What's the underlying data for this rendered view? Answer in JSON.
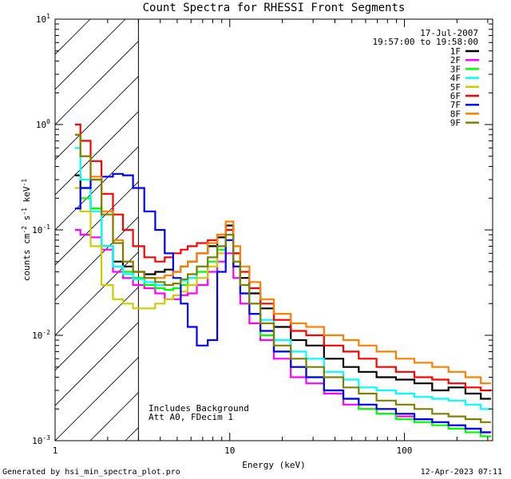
{
  "chart_data": {
    "type": "line",
    "title": "Count Spectra for RHESSI Front Segments",
    "xlabel": "Energy (keV)",
    "ylabel_parts": [
      "counts cm",
      "-2",
      " s",
      "-1",
      " keV",
      "-1"
    ],
    "xscale": "log",
    "yscale": "log",
    "xlim": [
      1,
      320
    ],
    "ylim": [
      0.001,
      10
    ],
    "x_tick_labels": [
      {
        "value": 1,
        "label": "1"
      },
      {
        "value": 10,
        "label": "10"
      },
      {
        "value": 100,
        "label": "100"
      }
    ],
    "y_tick_labels": [
      {
        "value": 0.001,
        "base": "10",
        "exp": "-3"
      },
      {
        "value": 0.01,
        "base": "10",
        "exp": "-2"
      },
      {
        "value": 0.1,
        "base": "10",
        "exp": "-1"
      },
      {
        "value": 1,
        "base": "10",
        "exp": "0"
      },
      {
        "value": 10,
        "base": "10",
        "exp": "1"
      }
    ],
    "shaded_region": {
      "from": 1,
      "to": 3,
      "pattern": "diagonal-hatch"
    },
    "annotations": {
      "date": "17-Jul-2007",
      "time_range": "19:57:00 to 19:58:00",
      "note_line1": "Includes Background",
      "note_line2": "Att A0, FDecim 1"
    },
    "series": [
      {
        "name": "1F",
        "color": "#000000",
        "x": [
          1.3,
          1.5,
          1.7,
          2.0,
          2.3,
          2.6,
          3.0,
          3.5,
          4.0,
          4.5,
          5.0,
          5.5,
          6.0,
          7.0,
          8.0,
          9.0,
          10.0,
          11.0,
          12.0,
          14.0,
          16.0,
          20.0,
          25.0,
          30.0,
          40.0,
          50.0,
          60.0,
          80.0,
          100.0,
          130.0,
          160.0,
          200.0,
          250.0,
          300.0
        ],
        "y": [
          0.33,
          0.25,
          0.16,
          0.07,
          0.05,
          0.045,
          0.04,
          0.038,
          0.04,
          0.042,
          0.04,
          0.045,
          0.05,
          0.06,
          0.07,
          0.085,
          0.11,
          0.06,
          0.035,
          0.025,
          0.018,
          0.012,
          0.009,
          0.008,
          0.006,
          0.005,
          0.0045,
          0.004,
          0.0038,
          0.0035,
          0.003,
          0.0032,
          0.0028,
          0.0025
        ]
      },
      {
        "name": "2F",
        "color": "#ff00ff",
        "x": [
          1.3,
          1.5,
          1.7,
          2.0,
          2.3,
          2.6,
          3.0,
          3.5,
          4.0,
          4.5,
          5.0,
          5.5,
          6.0,
          7.0,
          8.0,
          9.0,
          10.0,
          11.0,
          12.0,
          14.0,
          16.0,
          20.0,
          25.0,
          30.0,
          40.0,
          50.0,
          60.0,
          80.0,
          100.0,
          130.0,
          160.0,
          200.0,
          250.0,
          300.0
        ],
        "y": [
          0.1,
          0.09,
          0.085,
          0.065,
          0.04,
          0.035,
          0.03,
          0.028,
          0.025,
          0.022,
          0.022,
          0.024,
          0.025,
          0.03,
          0.04,
          0.05,
          0.06,
          0.035,
          0.02,
          0.013,
          0.009,
          0.006,
          0.004,
          0.0035,
          0.0028,
          0.0022,
          0.002,
          0.0018,
          0.0017,
          0.0016,
          0.0015,
          0.0014,
          0.0013,
          0.0012
        ]
      },
      {
        "name": "3F",
        "color": "#00ff00",
        "x": [
          1.3,
          1.5,
          1.7,
          2.0,
          2.3,
          2.6,
          3.0,
          3.5,
          4.0,
          4.5,
          5.0,
          5.5,
          6.0,
          7.0,
          8.0,
          9.0,
          10.0,
          11.0,
          12.0,
          14.0,
          16.0,
          20.0,
          25.0,
          30.0,
          40.0,
          50.0,
          60.0,
          80.0,
          100.0,
          130.0,
          160.0,
          200.0,
          250.0,
          300.0
        ],
        "y": [
          0.16,
          0.2,
          0.16,
          0.07,
          0.045,
          0.04,
          0.035,
          0.03,
          0.028,
          0.027,
          0.028,
          0.03,
          0.035,
          0.04,
          0.05,
          0.065,
          0.08,
          0.045,
          0.025,
          0.016,
          0.01,
          0.007,
          0.005,
          0.004,
          0.003,
          0.0025,
          0.002,
          0.0018,
          0.0016,
          0.0015,
          0.0014,
          0.0013,
          0.0012,
          0.0011
        ]
      },
      {
        "name": "4F",
        "color": "#00ffff",
        "x": [
          1.3,
          1.5,
          1.7,
          2.0,
          2.3,
          2.6,
          3.0,
          3.5,
          4.0,
          4.5,
          5.0,
          5.5,
          6.0,
          7.0,
          8.0,
          9.0,
          10.0,
          11.0,
          12.0,
          14.0,
          16.0,
          20.0,
          25.0,
          30.0,
          40.0,
          50.0,
          60.0,
          80.0,
          100.0,
          130.0,
          160.0,
          200.0,
          250.0,
          300.0
        ],
        "y": [
          0.6,
          0.3,
          0.15,
          0.07,
          0.045,
          0.038,
          0.034,
          0.032,
          0.03,
          0.03,
          0.031,
          0.033,
          0.035,
          0.045,
          0.055,
          0.07,
          0.09,
          0.05,
          0.03,
          0.02,
          0.014,
          0.009,
          0.007,
          0.006,
          0.0045,
          0.0038,
          0.0032,
          0.003,
          0.0028,
          0.0026,
          0.0025,
          0.0024,
          0.0022,
          0.002
        ]
      },
      {
        "name": "5F",
        "color": "#cccc00",
        "x": [
          1.3,
          1.5,
          1.7,
          2.0,
          2.3,
          2.6,
          3.0,
          3.5,
          4.0,
          4.5,
          5.0,
          5.5,
          6.0,
          7.0,
          8.0,
          9.0,
          10.0,
          11.0,
          12.0,
          14.0,
          16.0,
          20.0,
          25.0,
          30.0,
          40.0,
          50.0,
          60.0,
          80.0,
          100.0,
          130.0,
          160.0,
          200.0,
          250.0,
          300.0
        ],
        "y": [
          0.25,
          0.15,
          0.07,
          0.03,
          0.022,
          0.02,
          0.018,
          0.018,
          0.02,
          0.022,
          0.024,
          0.026,
          0.03,
          0.035,
          0.045,
          0.06,
          0.08,
          0.045,
          0.025,
          0.016,
          0.011,
          0.007,
          0.005,
          0.004,
          0.003,
          0.0025,
          0.0022,
          0.002,
          0.0018,
          0.0016,
          0.0015,
          0.0014,
          0.0013,
          0.0012
        ]
      },
      {
        "name": "6F",
        "color": "#ff0000",
        "x": [
          1.3,
          1.5,
          1.7,
          2.0,
          2.3,
          2.6,
          3.0,
          3.5,
          4.0,
          4.5,
          5.0,
          5.5,
          6.0,
          7.0,
          8.0,
          9.0,
          10.0,
          11.0,
          12.0,
          14.0,
          16.0,
          20.0,
          25.0,
          30.0,
          40.0,
          50.0,
          60.0,
          80.0,
          100.0,
          130.0,
          160.0,
          200.0,
          250.0,
          300.0
        ],
        "y": [
          1.0,
          0.7,
          0.45,
          0.22,
          0.14,
          0.1,
          0.07,
          0.055,
          0.05,
          0.055,
          0.06,
          0.065,
          0.07,
          0.075,
          0.08,
          0.09,
          0.1,
          0.06,
          0.04,
          0.028,
          0.02,
          0.014,
          0.011,
          0.01,
          0.008,
          0.007,
          0.006,
          0.005,
          0.0045,
          0.004,
          0.0038,
          0.0035,
          0.0032,
          0.003
        ]
      },
      {
        "name": "7F",
        "color": "#0000ff",
        "x": [
          1.3,
          1.5,
          1.7,
          2.0,
          2.3,
          2.6,
          3.0,
          3.5,
          4.0,
          4.5,
          5.0,
          5.5,
          6.0,
          7.0,
          8.0,
          9.0,
          10.0,
          11.0,
          12.0,
          14.0,
          16.0,
          20.0,
          25.0,
          30.0,
          40.0,
          50.0,
          60.0,
          80.0,
          100.0,
          130.0,
          160.0,
          200.0,
          250.0,
          300.0
        ],
        "y": [
          0.16,
          0.25,
          0.3,
          0.32,
          0.34,
          0.33,
          0.25,
          0.15,
          0.1,
          0.06,
          0.035,
          0.02,
          0.012,
          0.008,
          0.009,
          0.04,
          0.08,
          0.045,
          0.025,
          0.016,
          0.011,
          0.007,
          0.005,
          0.004,
          0.003,
          0.0025,
          0.0022,
          0.002,
          0.0018,
          0.0016,
          0.0015,
          0.0014,
          0.0013,
          0.0012
        ]
      },
      {
        "name": "8F",
        "color": "#ff8000",
        "x": [
          1.3,
          1.5,
          1.7,
          2.0,
          2.3,
          2.6,
          3.0,
          3.5,
          4.0,
          4.5,
          5.0,
          5.5,
          6.0,
          7.0,
          8.0,
          9.0,
          10.0,
          11.0,
          12.0,
          14.0,
          16.0,
          20.0,
          25.0,
          30.0,
          40.0,
          50.0,
          60.0,
          80.0,
          100.0,
          130.0,
          160.0,
          200.0,
          250.0,
          300.0
        ],
        "y": [
          0.8,
          0.5,
          0.32,
          0.15,
          0.08,
          0.05,
          0.04,
          0.035,
          0.035,
          0.037,
          0.04,
          0.045,
          0.05,
          0.06,
          0.075,
          0.09,
          0.12,
          0.07,
          0.045,
          0.032,
          0.022,
          0.016,
          0.013,
          0.012,
          0.01,
          0.009,
          0.008,
          0.007,
          0.006,
          0.0055,
          0.005,
          0.0045,
          0.004,
          0.0035
        ]
      },
      {
        "name": "9F",
        "color": "#808000",
        "x": [
          1.3,
          1.5,
          1.7,
          2.0,
          2.3,
          2.6,
          3.0,
          3.5,
          4.0,
          4.5,
          5.0,
          5.5,
          6.0,
          7.0,
          8.0,
          9.0,
          10.0,
          11.0,
          12.0,
          14.0,
          16.0,
          20.0,
          25.0,
          30.0,
          40.0,
          50.0,
          60.0,
          80.0,
          100.0,
          130.0,
          160.0,
          200.0,
          250.0,
          300.0
        ],
        "y": [
          0.8,
          0.5,
          0.3,
          0.14,
          0.075,
          0.05,
          0.04,
          0.035,
          0.032,
          0.03,
          0.031,
          0.034,
          0.038,
          0.045,
          0.055,
          0.07,
          0.09,
          0.05,
          0.03,
          0.02,
          0.013,
          0.008,
          0.006,
          0.005,
          0.004,
          0.0032,
          0.0028,
          0.0024,
          0.0022,
          0.002,
          0.0018,
          0.0017,
          0.0016,
          0.0015
        ]
      }
    ]
  },
  "footer": {
    "left": "Generated by hsi_min_spectra_plot.pro",
    "right": "12-Apr-2023 07:11"
  }
}
